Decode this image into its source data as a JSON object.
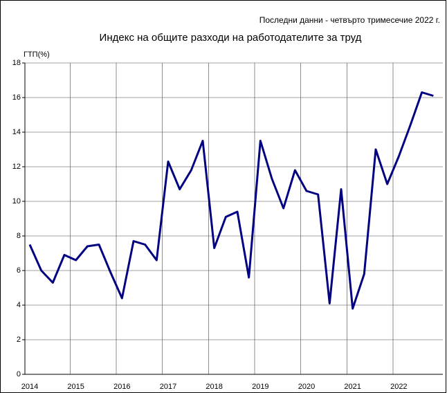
{
  "chart_data": {
    "type": "line",
    "title": "Индекс на общите разходи на работодателите за труд",
    "subtitle": "Последни данни - четвърто тримесечие 2022 г.",
    "y_label": "ГТП(%)",
    "categories": [
      "2014",
      null,
      null,
      null,
      "2015",
      null,
      null,
      null,
      "2016",
      null,
      null,
      null,
      "2017",
      null,
      null,
      null,
      "2018",
      null,
      null,
      null,
      "2019",
      null,
      null,
      null,
      "2020",
      null,
      null,
      null,
      "2021",
      null,
      null,
      null,
      "2022",
      null,
      null,
      null
    ],
    "series": [
      {
        "color": "#000080",
        "values": [
          7.5,
          6.0,
          5.3,
          6.9,
          6.6,
          7.4,
          7.5,
          5.9,
          4.4,
          7.7,
          7.5,
          6.6,
          12.3,
          10.7,
          11.8,
          13.5,
          7.3,
          9.1,
          9.4,
          5.6,
          13.5,
          11.3,
          9.6,
          11.8,
          10.6,
          10.4,
          4.1,
          10.7,
          3.8,
          5.8,
          13.0,
          11.0,
          12.6,
          14.4,
          16.3,
          16.1
        ]
      }
    ],
    "ylim": [
      0,
      18
    ],
    "yticks": [
      0,
      2,
      4,
      6,
      8,
      10,
      12,
      14,
      16,
      18
    ],
    "grid": true
  }
}
